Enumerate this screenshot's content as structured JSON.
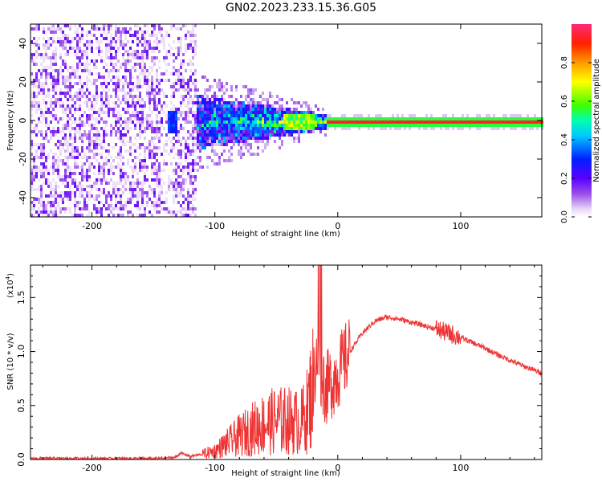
{
  "title": "GN02.2023.233.15.36.G05",
  "chart_data": [
    {
      "type": "heatmap",
      "xlabel": "Height of straight line (km)",
      "ylabel": "Frequency (Hz)",
      "xlim": [
        -250,
        166
      ],
      "ylim": [
        -50,
        50
      ],
      "xticks": [
        -200,
        -100,
        0,
        100
      ],
      "yticks": [
        -40,
        -20,
        0,
        20,
        40
      ],
      "colorbar": {
        "label": "Normalized spectral amplitude",
        "range": [
          0,
          1
        ],
        "ticks": [
          "0.0",
          "0.2",
          "0.4",
          "0.6",
          "0.8"
        ],
        "tick_values": [
          0,
          0.2,
          0.4,
          0.6,
          0.8
        ],
        "colormap": "rainbow (white-lavender-purple-blue-cyan-green-yellow-orange-red-magenta)"
      },
      "features": [
        {
          "name": "noise",
          "x_range": [
            -250,
            -115
          ],
          "freq_range": [
            -50,
            50
          ],
          "amplitude": 0.05
        },
        {
          "name": "emerging signal",
          "x_range": [
            -115,
            -30
          ],
          "freq_spread_hz": [
            12,
            4
          ],
          "amplitude": 0.2
        },
        {
          "name": "steady tone",
          "x_range": [
            -10,
            166
          ],
          "frequency_hz": 0,
          "amplitude": 0.95
        }
      ]
    },
    {
      "type": "line",
      "xlabel": "Height of straight line (km)",
      "ylabel": "SNR (10 * v/v)",
      "y_multiplier_label": "(x10",
      "y_multiplier_exp": "4",
      "y_multiplier_close": ")",
      "xlim": [
        -250,
        166
      ],
      "ylim": [
        0,
        1.8
      ],
      "xticks": [
        -200,
        -100,
        0,
        100
      ],
      "yticks": [
        "0.0",
        "0.5",
        "1.0",
        "1.5"
      ],
      "ytick_values": [
        0,
        0.5,
        1.0,
        1.5
      ],
      "series": [
        {
          "color": "#ee3333",
          "x": [
            -250,
            -200,
            -150,
            -132,
            -128,
            -120,
            -110,
            -100,
            -90,
            -80,
            -70,
            -60,
            -50,
            -40,
            -30,
            -25,
            -20,
            -17,
            -15,
            -10,
            -5,
            0,
            10,
            20,
            30,
            40,
            50,
            60,
            70,
            80,
            90,
            100,
            110,
            120,
            130,
            140,
            150,
            166
          ],
          "y": [
            0.01,
            0.01,
            0.01,
            0.02,
            0.06,
            0.03,
            0.05,
            0.08,
            0.15,
            0.22,
            0.28,
            0.33,
            0.36,
            0.36,
            0.34,
            0.45,
            0.7,
            1.0,
            0.9,
            0.65,
            0.72,
            0.8,
            1.0,
            1.17,
            1.28,
            1.32,
            1.3,
            1.27,
            1.24,
            1.21,
            1.17,
            1.13,
            1.08,
            1.03,
            0.97,
            0.92,
            0.87,
            0.8
          ]
        }
      ],
      "annotations": [
        {
          "name": "spike",
          "x": -14,
          "y": 1.8
        },
        {
          "name": "peak",
          "x": 40,
          "y": 1.32
        }
      ]
    }
  ]
}
